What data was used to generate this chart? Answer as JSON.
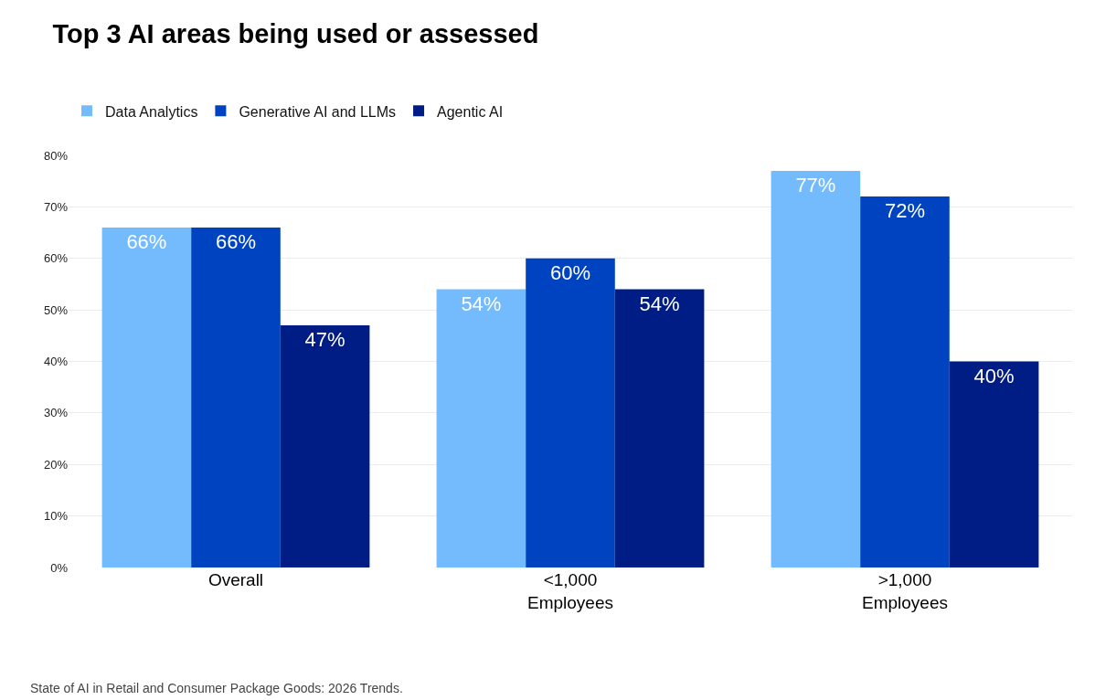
{
  "chart_data": {
    "type": "bar",
    "title": "Top 3 AI areas being used or assessed",
    "categories": [
      "Overall",
      "<1,000\nEmployees",
      ">1,000\nEmployees"
    ],
    "series": [
      {
        "name": "Data Analytics",
        "color": "#74bbfd",
        "values": [
          66,
          54,
          77
        ],
        "value_labels": [
          "66%",
          "54%",
          "77%"
        ]
      },
      {
        "name": "Generative AI and LLMs",
        "color": "#0043c0",
        "values": [
          66,
          60,
          72
        ],
        "value_labels": [
          "66%",
          "60%",
          "72%"
        ]
      },
      {
        "name": "Agentic AI",
        "color": "#001c85",
        "values": [
          47,
          54,
          40
        ],
        "value_labels": [
          "47%",
          "54%",
          "40%"
        ]
      }
    ],
    "ylim": [
      0,
      80
    ],
    "yticks": [
      {
        "value": 0,
        "label": "0%"
      },
      {
        "value": 10,
        "label": "10%"
      },
      {
        "value": 20,
        "label": "20%"
      },
      {
        "value": 30,
        "label": "30%"
      },
      {
        "value": 40,
        "label": "40%"
      },
      {
        "value": 50,
        "label": "50%"
      },
      {
        "value": 60,
        "label": "60%"
      },
      {
        "value": 70,
        "label": "70%"
      },
      {
        "value": 80,
        "label": "80%"
      }
    ],
    "grid": "y",
    "legend": "top left",
    "annotations": [
      "State of AI in Retail and Consumer Package Goods: 2026 Trends."
    ]
  }
}
